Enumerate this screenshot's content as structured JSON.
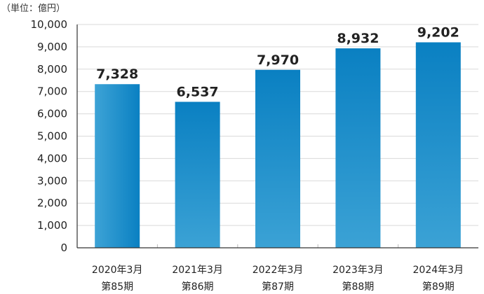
{
  "chart_data": {
    "type": "bar",
    "unit_label": "（単位：億円）",
    "categories": [
      {
        "line1": "2020年3月",
        "line2": "第85期"
      },
      {
        "line1": "2021年3月",
        "line2": "第86期"
      },
      {
        "line1": "2022年3月",
        "line2": "第87期"
      },
      {
        "line1": "2023年3月",
        "line2": "第88期"
      },
      {
        "line1": "2024年3月",
        "line2": "第89期"
      }
    ],
    "values": [
      7328,
      6537,
      7970,
      8932,
      9202
    ],
    "value_labels": [
      "7,328",
      "6,537",
      "7,970",
      "8,932",
      "9,202"
    ],
    "ylim": [
      0,
      10000
    ],
    "yticks": [
      0,
      1000,
      2000,
      3000,
      4000,
      5000,
      6000,
      7000,
      8000,
      9000,
      10000
    ],
    "ytick_labels": [
      "0",
      "1,000",
      "2,000",
      "3,000",
      "4,000",
      "5,000",
      "6,000",
      "7,000",
      "8,000",
      "9,000",
      "10,000"
    ],
    "grid": true,
    "colors": {
      "bar_light": "#3da3d6",
      "bar_dark": "#0a80c2",
      "grid": "#d9d9d9",
      "axis": "#333333"
    }
  }
}
